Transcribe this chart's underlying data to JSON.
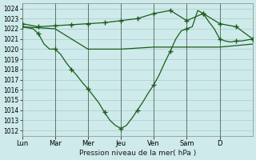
{
  "background_color": "#ceeaea",
  "grid_color": "#aacece",
  "line_color": "#1a5c1a",
  "xlabel": "Pression niveau de la mer( hPa )",
  "ylim": [
    1011.5,
    1024.5
  ],
  "yticks": [
    1012,
    1013,
    1014,
    1015,
    1016,
    1017,
    1018,
    1019,
    1020,
    1021,
    1022,
    1023,
    1024
  ],
  "day_labels": [
    "Lun",
    "Mar",
    "Mer",
    "Jeu",
    "Ven",
    "Sam",
    "D"
  ],
  "day_positions": [
    0,
    6,
    12,
    18,
    24,
    30,
    36
  ],
  "xlim": [
    0,
    42
  ],
  "s1_x": [
    0,
    6,
    12,
    18,
    24,
    30,
    36,
    42
  ],
  "s1_y": [
    1022.2,
    1022.0,
    1020.0,
    1020.0,
    1020.2,
    1020.2,
    1020.2,
    1020.5
  ],
  "s2_x": [
    0,
    1,
    2,
    3,
    4,
    5,
    6,
    7,
    8,
    9,
    10,
    11,
    12,
    13,
    14,
    15,
    16,
    17,
    18,
    19,
    20,
    21,
    22,
    23,
    24,
    25,
    26,
    27,
    28,
    29,
    30,
    31,
    32,
    33,
    34,
    35,
    36,
    37,
    38,
    39,
    40,
    41,
    42
  ],
  "s2_y": [
    1022.2,
    1022.1,
    1022.0,
    1021.5,
    1020.5,
    1020.0,
    1020.0,
    1019.5,
    1018.7,
    1018.0,
    1017.4,
    1016.7,
    1016.1,
    1015.4,
    1014.7,
    1013.8,
    1013.0,
    1012.5,
    1012.2,
    1012.5,
    1013.2,
    1014.0,
    1014.8,
    1015.7,
    1016.5,
    1017.5,
    1018.7,
    1019.8,
    1021.0,
    1021.8,
    1022.0,
    1022.2,
    1023.8,
    1023.5,
    1022.7,
    1022.0,
    1021.0,
    1020.8,
    1020.7,
    1020.8,
    1020.8,
    1020.9,
    1021.0
  ],
  "s2_marker_x": [
    0,
    3,
    6,
    9,
    12,
    15,
    18,
    21,
    24,
    27,
    30,
    33,
    36,
    39,
    42
  ],
  "s2_marker_y": [
    1022.2,
    1021.5,
    1020.0,
    1018.0,
    1016.1,
    1013.8,
    1012.2,
    1014.0,
    1016.5,
    1019.8,
    1022.0,
    1023.5,
    1021.0,
    1020.8,
    1021.0
  ],
  "s3_x": [
    0,
    3,
    6,
    9,
    12,
    15,
    18,
    21,
    24,
    27,
    30,
    33,
    36,
    39,
    42
  ],
  "s3_y": [
    1022.5,
    1022.2,
    1022.3,
    1022.4,
    1022.5,
    1022.6,
    1022.8,
    1023.0,
    1023.5,
    1023.8,
    1022.8,
    1023.5,
    1022.5,
    1022.2,
    1021.0
  ]
}
